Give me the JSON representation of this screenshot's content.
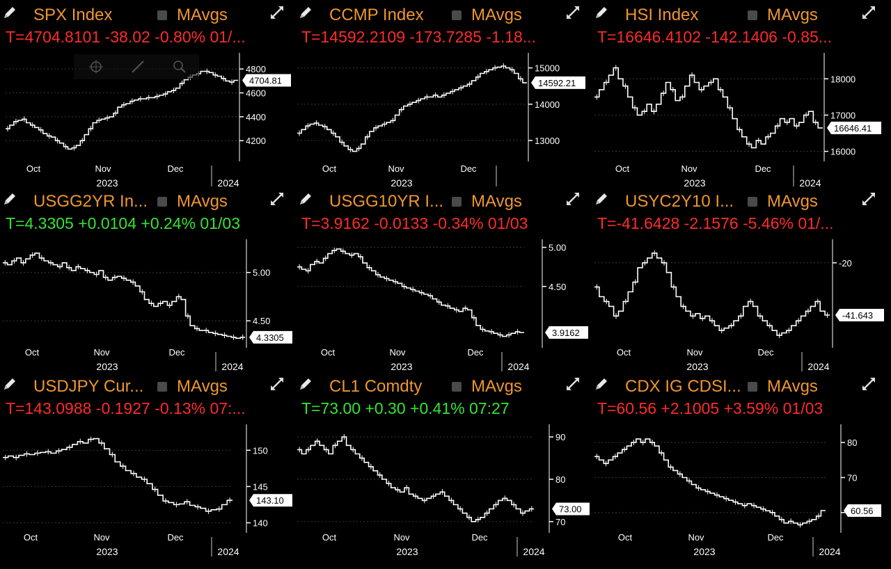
{
  "colors": {
    "title": "#f0962e",
    "negative": "#ff2b2b",
    "positive": "#35e335",
    "line": "#ffffff"
  },
  "panels": [
    {
      "title": "SPX Index",
      "mavgs": "MAvgs",
      "quote": "T=4704.8101 -38.02 -0.80% 01/...",
      "direction": "negative",
      "last": "4704.81",
      "chart_data": {
        "type": "line",
        "ylim": [
          4050,
          4900
        ],
        "yticks": [
          {
            "v": 4800,
            "label": "4800"
          },
          {
            "v": 4600,
            "label": "4600"
          },
          {
            "v": 4400,
            "label": "4400"
          },
          {
            "v": 4200,
            "label": "4200"
          }
        ],
        "months": [
          "Oct",
          "Nov",
          "Dec"
        ],
        "year_left": "2023",
        "year_right": "2024",
        "values": [
          4300,
          4330,
          4360,
          4370,
          4380,
          4350,
          4330,
          4310,
          4290,
          4260,
          4240,
          4230,
          4200,
          4180,
          4150,
          4130,
          4140,
          4160,
          4200,
          4250,
          4300,
          4350,
          4370,
          4380,
          4390,
          4400,
          4430,
          4480,
          4500,
          4510,
          4530,
          4540,
          4550,
          4550,
          4560,
          4560,
          4570,
          4580,
          4590,
          4610,
          4620,
          4640,
          4680,
          4710,
          4730,
          4750,
          4760,
          4780,
          4780,
          4770,
          4750,
          4740,
          4720,
          4700,
          4690,
          4705
        ]
      }
    },
    {
      "title": "CCMP Index",
      "mavgs": "MAvgs",
      "quote": "T=14592.2109 -173.7285 -1.18...",
      "direction": "negative",
      "last": "14592.21",
      "chart_data": {
        "type": "line",
        "ylim": [
          12500,
          15300
        ],
        "yticks": [
          {
            "v": 15000,
            "label": "15000"
          },
          {
            "v": 14000,
            "label": "14000"
          },
          {
            "v": 13000,
            "label": "13000"
          }
        ],
        "months": [
          "Oct",
          "Nov",
          "Dec"
        ],
        "year_left": "2023",
        "year_right": "",
        "values": [
          13200,
          13300,
          13400,
          13450,
          13480,
          13420,
          13380,
          13300,
          13200,
          13100,
          12950,
          12850,
          12750,
          12700,
          12780,
          12900,
          13100,
          13250,
          13350,
          13400,
          13450,
          13500,
          13550,
          13700,
          13850,
          13950,
          14000,
          14050,
          14100,
          14150,
          14200,
          14200,
          14250,
          14200,
          14250,
          14300,
          14350,
          14400,
          14450,
          14500,
          14550,
          14650,
          14750,
          14850,
          14900,
          14950,
          15000,
          15020,
          15050,
          15000,
          14950,
          14850,
          14700,
          14592
        ]
      }
    },
    {
      "title": "HSI Index",
      "mavgs": "MAvgs",
      "quote": "T=16646.4102 -142.1406 -0.85...",
      "direction": "negative",
      "last": "16646.41",
      "chart_data": {
        "type": "line",
        "ylim": [
          15800,
          18600
        ],
        "yticks": [
          {
            "v": 18000,
            "label": "18000"
          },
          {
            "v": 17000,
            "label": "17000"
          },
          {
            "v": 16000,
            "label": "16000"
          }
        ],
        "months": [
          "Oct",
          "Nov",
          "Dec"
        ],
        "year_left": "2023",
        "year_right": "2024",
        "values": [
          17500,
          17700,
          17900,
          18100,
          18300,
          18000,
          17800,
          17500,
          17200,
          17000,
          17100,
          17300,
          17100,
          17300,
          17600,
          17900,
          17700,
          17400,
          17500,
          17800,
          18100,
          17900,
          17700,
          17800,
          17900,
          18000,
          17700,
          17500,
          17200,
          16900,
          16600,
          16400,
          16200,
          16100,
          16300,
          16200,
          16400,
          16500,
          16700,
          16900,
          16800,
          16900,
          16700,
          16800,
          17000,
          17100,
          16800,
          16646
        ]
      }
    },
    {
      "title": "USGG2YR In...",
      "mavgs": "MAvgs",
      "quote": "T=4.3305 +0.0104 +0.24% 01/03",
      "direction": "positive",
      "last": "4.3305",
      "chart_data": {
        "type": "line",
        "ylim": [
          4.25,
          5.3
        ],
        "yticks": [
          {
            "v": 5.0,
            "label": "5.00"
          },
          {
            "v": 4.5,
            "label": "4.50"
          }
        ],
        "months": [
          "Oct",
          "Nov",
          "Dec"
        ],
        "year_left": "2023",
        "year_right": "2024",
        "values": [
          5.1,
          5.08,
          5.12,
          5.15,
          5.1,
          5.14,
          5.18,
          5.2,
          5.15,
          5.12,
          5.1,
          5.08,
          5.06,
          5.1,
          5.05,
          5.02,
          5.06,
          5.04,
          5.02,
          5.0,
          4.98,
          5.02,
          4.95,
          4.92,
          4.95,
          4.96,
          4.94,
          4.92,
          4.9,
          4.86,
          4.8,
          4.72,
          4.68,
          4.65,
          4.68,
          4.7,
          4.66,
          4.7,
          4.75,
          4.72,
          4.55,
          4.45,
          4.42,
          4.4,
          4.4,
          4.38,
          4.37,
          4.36,
          4.35,
          4.34,
          4.33,
          4.32,
          4.33
        ]
      }
    },
    {
      "title": "USGG10YR I...",
      "mavgs": "MAvgs",
      "quote": "T=3.9162 -0.0133 -0.34% 01/03",
      "direction": "negative",
      "last": "3.9162",
      "chart_data": {
        "type": "line",
        "ylim": [
          3.75,
          5.05
        ],
        "yticks": [
          {
            "v": 5.0,
            "label": "5.00"
          },
          {
            "v": 4.5,
            "label": "4.50"
          }
        ],
        "months": [
          "Oct",
          "Nov",
          "Dec"
        ],
        "year_left": "2023",
        "year_right": "2024",
        "values": [
          4.75,
          4.72,
          4.7,
          4.78,
          4.82,
          4.8,
          4.86,
          4.92,
          4.96,
          4.98,
          4.95,
          4.92,
          4.9,
          4.92,
          4.88,
          4.8,
          4.74,
          4.7,
          4.65,
          4.62,
          4.6,
          4.58,
          4.56,
          4.54,
          4.5,
          4.48,
          4.46,
          4.44,
          4.42,
          4.4,
          4.38,
          4.34,
          4.3,
          4.26,
          4.25,
          4.22,
          4.2,
          4.18,
          4.22,
          4.2,
          4.1,
          4.0,
          3.95,
          3.93,
          3.92,
          3.9,
          3.88,
          3.86,
          3.88,
          3.9,
          3.92,
          3.91
        ]
      }
    },
    {
      "title": "USYC2Y10 I...",
      "mavgs": "MAvgs",
      "quote": "T=-41.6428 -2.1576 -5.46% 01/...",
      "direction": "negative",
      "last": "-41.643",
      "chart_data": {
        "type": "line",
        "ylim": [
          -54,
          -12
        ],
        "yticks": [
          {
            "v": -20,
            "label": "-20"
          }
        ],
        "months": [
          "Oct",
          "Nov",
          "Dec"
        ],
        "year_left": "2023",
        "year_right": "2024",
        "values": [
          -30,
          -34,
          -36,
          -38,
          -42,
          -40,
          -36,
          -32,
          -28,
          -22,
          -20,
          -18,
          -16,
          -18,
          -20,
          -24,
          -30,
          -34,
          -38,
          -40,
          -42,
          -41,
          -43,
          -42,
          -44,
          -46,
          -48,
          -47,
          -46,
          -44,
          -42,
          -38,
          -36,
          -38,
          -42,
          -44,
          -46,
          -48,
          -50,
          -49,
          -48,
          -46,
          -44,
          -42,
          -40,
          -38,
          -36,
          -40,
          -41.64
        ]
      }
    },
    {
      "title": "USDJPY Cur...",
      "mavgs": "MAvgs",
      "quote": "T=143.0988 -0.1927 -0.13% 07:...",
      "direction": "negative",
      "last": "143.10",
      "chart_data": {
        "type": "line",
        "ylim": [
          139,
          153
        ],
        "yticks": [
          {
            "v": 150,
            "label": "150"
          },
          {
            "v": 145,
            "label": "145"
          },
          {
            "v": 140,
            "label": "140"
          }
        ],
        "months": [
          "Oct",
          "Nov",
          "Dec"
        ],
        "year_left": "2023",
        "year_right": "2024",
        "values": [
          149.0,
          149.2,
          149.0,
          149.3,
          149.5,
          149.4,
          149.6,
          149.7,
          149.8,
          149.6,
          149.9,
          150.1,
          150.4,
          150.8,
          151.2,
          151.0,
          151.5,
          151.6,
          151.0,
          150.2,
          149.4,
          148.4,
          147.8,
          147.2,
          146.8,
          146.3,
          146.0,
          145.4,
          144.6,
          143.8,
          143.0,
          142.8,
          142.5,
          142.6,
          142.9,
          142.4,
          142.2,
          142.0,
          141.6,
          141.8,
          141.9,
          142.5,
          143.1
        ]
      }
    },
    {
      "title": "CL1 Comdty",
      "mavgs": "MAvgs",
      "quote": "T=73.00 +0.30 +0.41% 07:27",
      "direction": "positive",
      "last": "73.00",
      "chart_data": {
        "type": "line",
        "ylim": [
          68,
          92
        ],
        "yticks": [
          {
            "v": 90,
            "label": "90"
          },
          {
            "v": 80,
            "label": "80"
          },
          {
            "v": 70,
            "label": "70"
          }
        ],
        "months": [
          "Oct",
          "Nov",
          "Dec"
        ],
        "year_left": "2023",
        "year_right": "2024",
        "values": [
          87,
          86,
          87,
          88,
          89,
          88,
          87,
          86,
          88,
          89,
          90,
          88,
          87,
          86,
          85,
          84,
          83,
          82,
          81,
          80,
          79,
          78,
          77.5,
          77,
          78,
          76.5,
          76,
          75.5,
          75,
          75.5,
          76,
          76.5,
          77,
          76,
          75,
          74,
          73,
          72,
          71,
          70,
          70.5,
          71,
          72,
          73,
          74,
          75,
          75.5,
          75,
          74,
          73,
          72,
          72.5,
          73
        ]
      }
    },
    {
      "title": "CDX IG CDSI...",
      "mavgs": "MAvgs",
      "quote": "T=60.56 +2.1005 +3.59% 01/03",
      "direction": "negative",
      "last": "60.56",
      "chart_data": {
        "type": "line",
        "ylim": [
          55,
          84
        ],
        "yticks": [
          {
            "v": 80,
            "label": "80"
          },
          {
            "v": 70,
            "label": "70"
          },
          {
            "v": 60,
            "label": "60"
          }
        ],
        "months": [
          "Oct",
          "Nov",
          "Dec"
        ],
        "year_left": "2023",
        "year_right": "2024",
        "values": [
          76,
          75,
          74,
          75,
          76,
          77,
          78,
          79,
          80,
          81,
          80,
          81,
          80,
          79,
          77,
          75,
          73,
          72,
          71,
          70,
          69,
          68,
          67,
          66.5,
          66,
          65.5,
          65,
          64.5,
          64,
          63.5,
          63,
          62.5,
          62,
          62.5,
          62,
          61.5,
          61,
          60.5,
          60,
          59,
          58,
          57,
          57.5,
          57,
          56.5,
          57,
          57.5,
          58,
          59,
          60.56
        ]
      }
    }
  ]
}
